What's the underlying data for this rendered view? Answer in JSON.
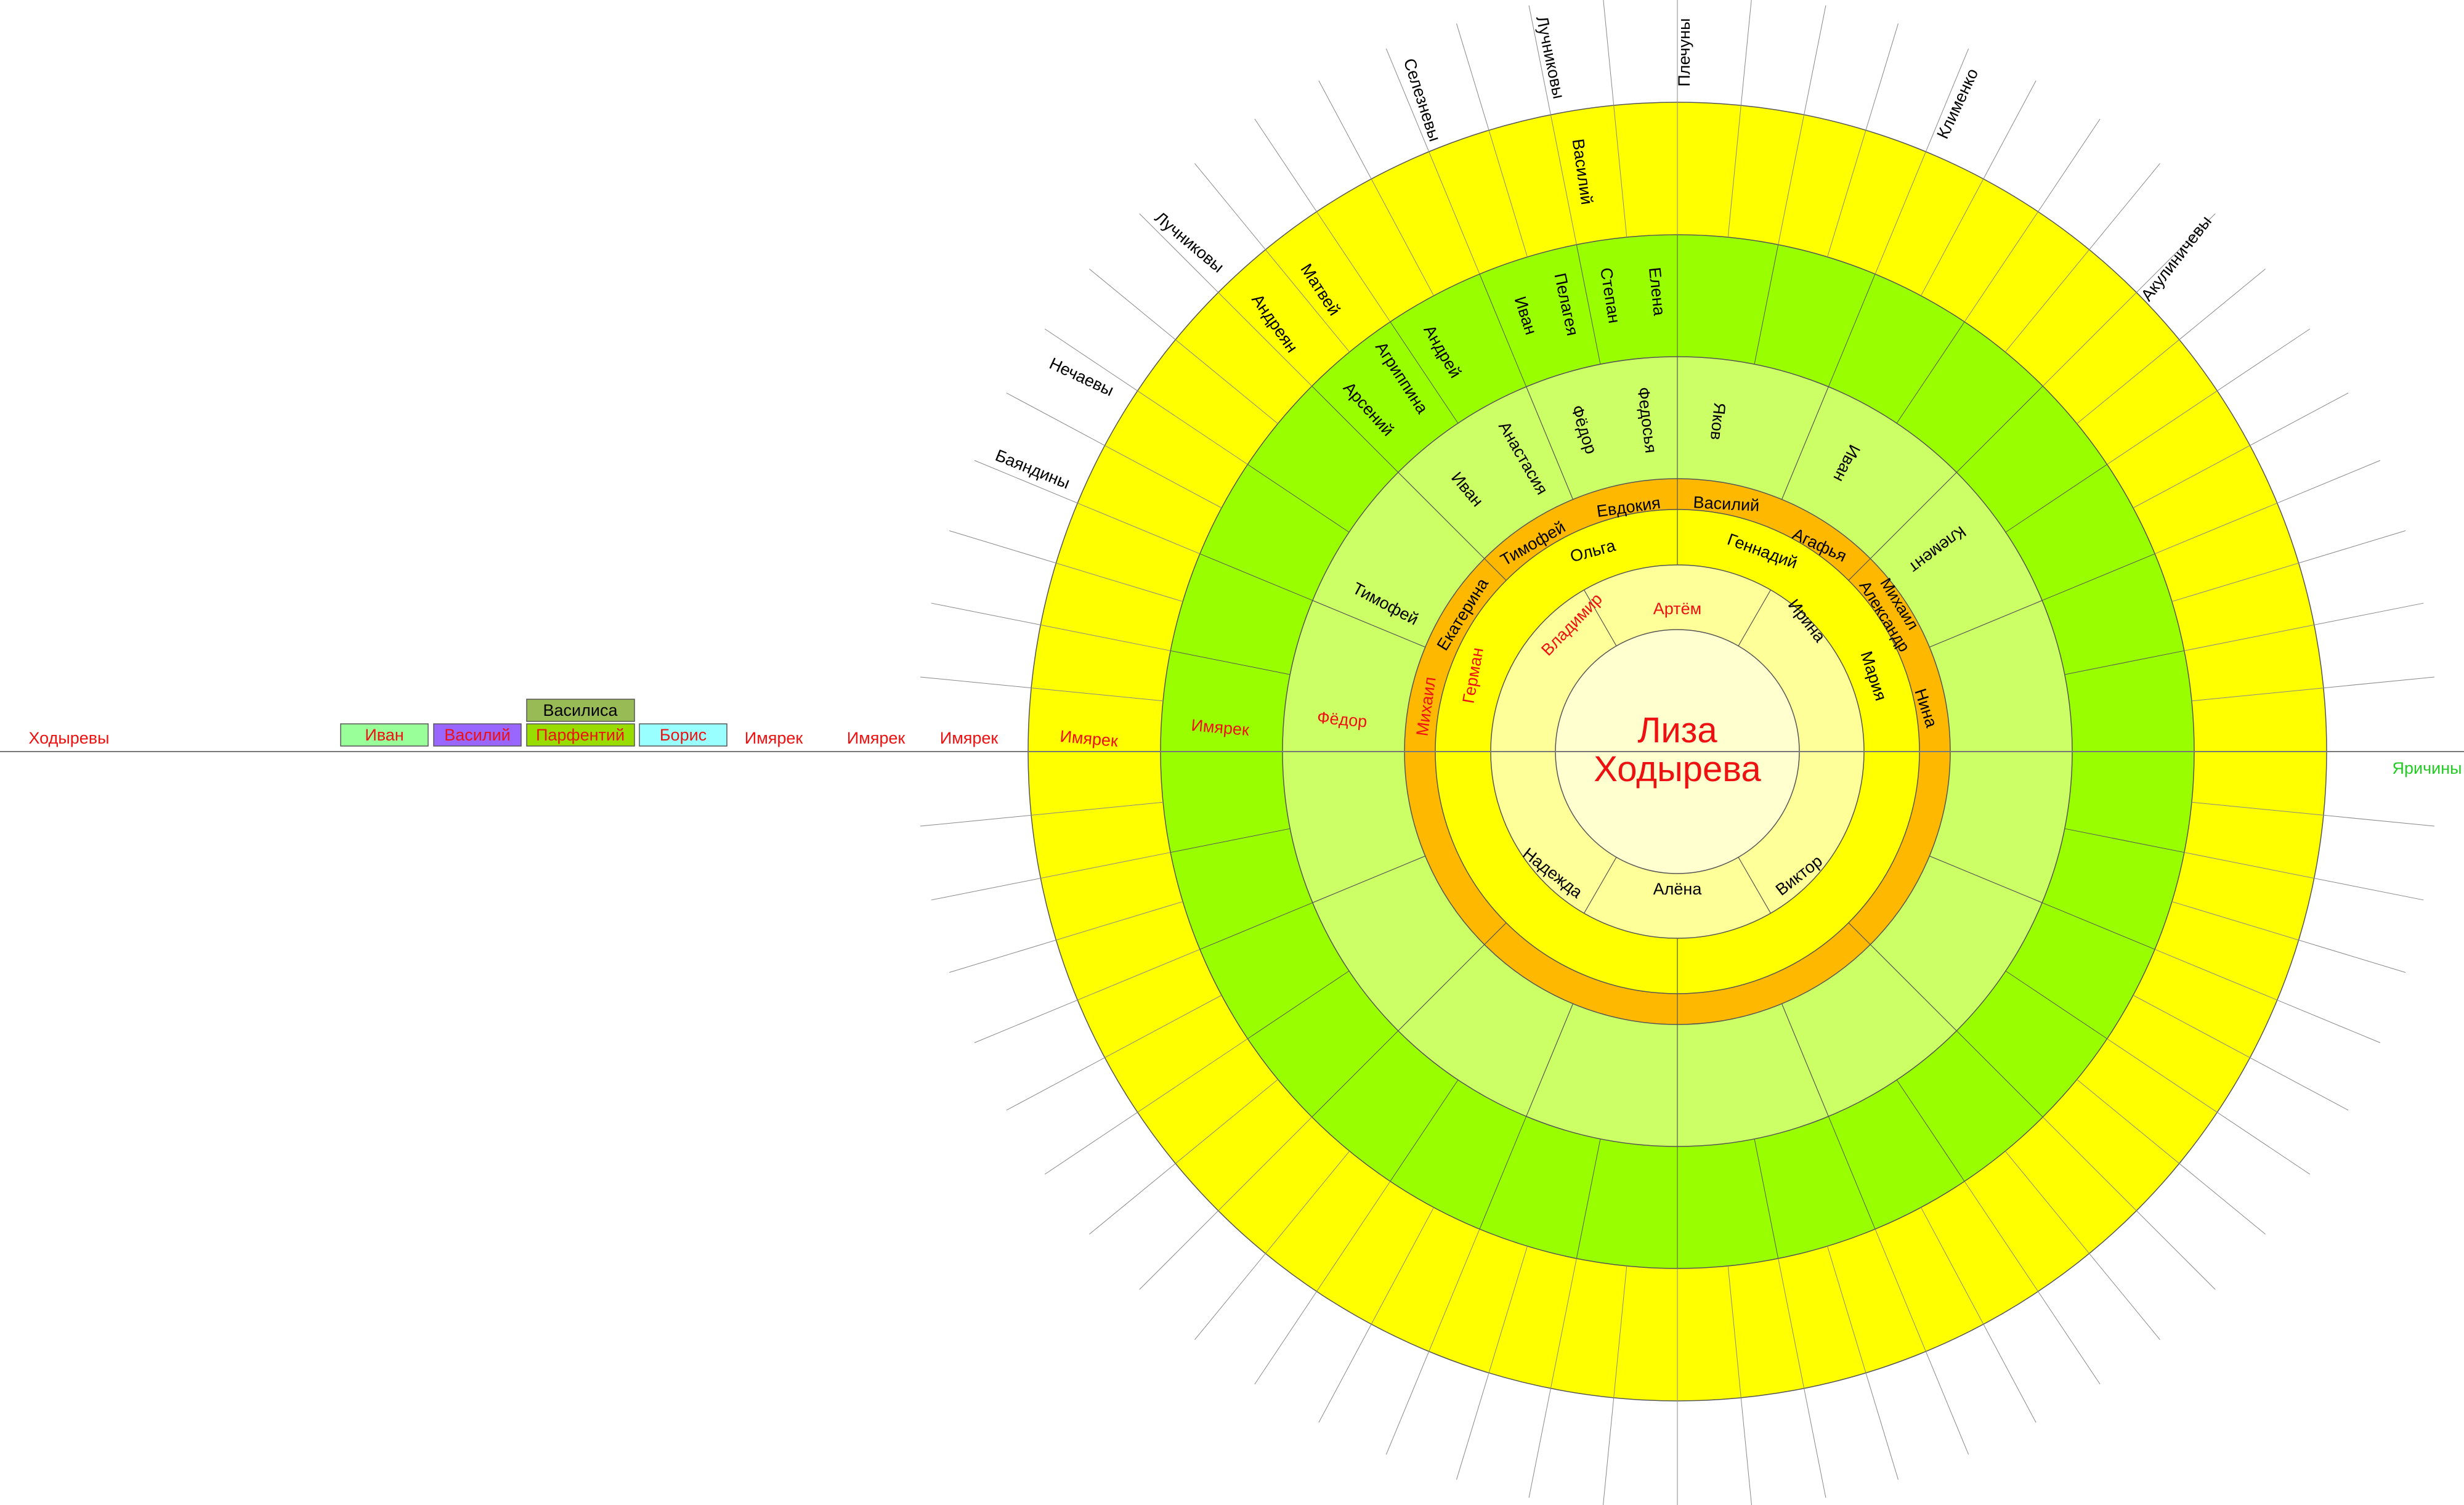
{
  "center": {
    "line1": "Лиза",
    "line2": "Ходырева"
  },
  "colors": {
    "center_fill": "#FFFFD0",
    "ring1_fill": "#FFFF99",
    "ring2_fill": "#FFFF00",
    "ring3_fill": "#FFB800",
    "ring4_fill": "#CCFF66",
    "ring5_fill": "#99FF00",
    "ring6_fill": "#FFFF00",
    "stroke": "#555555",
    "red_text": "#EE1111",
    "green_text": "#22CC22",
    "black_text": "#000000"
  },
  "ring1_names": [
    {
      "text": "Артём",
      "color": "red"
    },
    {
      "text": "Ирина",
      "color": "black"
    },
    {
      "text": "Виктор",
      "color": "black"
    },
    {
      "text": "Алёна",
      "color": "black"
    },
    {
      "text": "Надежда",
      "color": "black"
    },
    {
      "text": "Владимир",
      "color": "red"
    }
  ],
  "ring2_names": [
    {
      "text": "Ольга",
      "color": "black"
    },
    {
      "text": "Геннадий",
      "color": "black"
    },
    {
      "text": "Мария",
      "color": "black"
    },
    {
      "text": "Герман",
      "color": "red"
    }
  ],
  "ring3_names": [
    {
      "text": "Евдокия",
      "color": "black"
    },
    {
      "text": "Василий",
      "color": "black"
    },
    {
      "text": "Агафья",
      "color": "black"
    },
    {
      "text": "Михаил",
      "color": "black"
    },
    {
      "text": "Александр",
      "color": "black"
    },
    {
      "text": "Нина",
      "color": "black"
    },
    {
      "text": "Тимофей",
      "color": "black"
    },
    {
      "text": "Екатерина",
      "color": "black"
    },
    {
      "text": "Михаил",
      "color": "red"
    }
  ],
  "ring4_names": [
    {
      "text": "Федосья",
      "color": "black"
    },
    {
      "text": "Яков",
      "color": "black"
    },
    {
      "text": "Иван",
      "color": "black"
    },
    {
      "text": "Клемент",
      "color": "black"
    },
    {
      "text": "Фёдор",
      "color": "black"
    },
    {
      "text": "Анастасия",
      "color": "black"
    },
    {
      "text": "Иван",
      "color": "black"
    },
    {
      "text": "Тимофей",
      "color": "black"
    },
    {
      "text": "Фёдор",
      "color": "red"
    }
  ],
  "ring5_names": [
    {
      "text": "Елена",
      "color": "black"
    },
    {
      "text": "Степан",
      "color": "black"
    },
    {
      "text": "Пелагея",
      "color": "black"
    },
    {
      "text": "Иван",
      "color": "black"
    },
    {
      "text": "Андрей",
      "color": "black"
    },
    {
      "text": "Агриппина",
      "color": "black"
    },
    {
      "text": "Арсений",
      "color": "black"
    },
    {
      "text": "Имярек",
      "color": "red"
    }
  ],
  "ring6_names": [
    {
      "text": "Василий",
      "color": "black"
    },
    {
      "text": "Матвей",
      "color": "black"
    },
    {
      "text": "Андреян",
      "color": "black"
    },
    {
      "text": "Имярек",
      "color": "red"
    }
  ],
  "outer_labels": [
    {
      "text": "Плечуны",
      "color": "black"
    },
    {
      "text": "Лучниковы",
      "color": "black"
    },
    {
      "text": "Селезневы",
      "color": "black"
    },
    {
      "text": "Клименко",
      "color": "black"
    },
    {
      "text": "Акулиничевы",
      "color": "black"
    },
    {
      "text": "Лучниковы",
      "color": "black"
    },
    {
      "text": "Нечаевы",
      "color": "black"
    },
    {
      "text": "Баяндины",
      "color": "black"
    },
    {
      "text": "Яричины",
      "color": "green"
    }
  ],
  "line_labels": [
    {
      "text": "Ходыревы",
      "color": "red"
    },
    {
      "text": "Имярек",
      "color": "red"
    },
    {
      "text": "Имярек",
      "color": "red"
    },
    {
      "text": "Имярек",
      "color": "red"
    }
  ],
  "legend_boxes": [
    {
      "text": "Иван",
      "fill": "#99FF99",
      "color": "red"
    },
    {
      "text": "Василий",
      "fill": "#9966FF",
      "color": "red"
    },
    {
      "text": "Парфентий",
      "fill": "#99DD00",
      "color": "red"
    },
    {
      "text": "Борис",
      "fill": "#99FFFF",
      "color": "red"
    },
    {
      "text": "Василиса",
      "fill": "#99BB55",
      "color": "black"
    }
  ]
}
